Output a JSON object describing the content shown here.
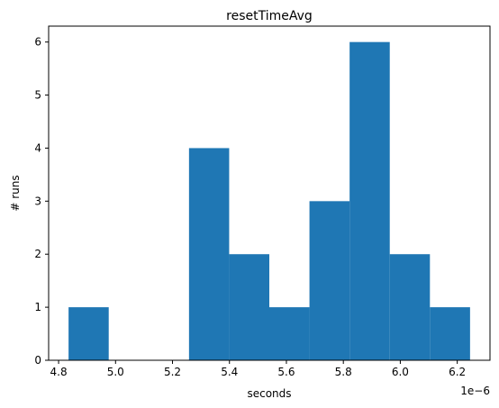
{
  "chart_data": {
    "type": "bar",
    "title": "resetTimeAvg",
    "xlabel": "seconds",
    "ylabel": "# runs",
    "x_offset_label": "1e−6",
    "bins": [
      {
        "start": 4.835,
        "end": 4.976,
        "count": 1
      },
      {
        "start": 4.976,
        "end": 5.117,
        "count": 0
      },
      {
        "start": 5.117,
        "end": 5.258,
        "count": 0
      },
      {
        "start": 5.258,
        "end": 5.399,
        "count": 4
      },
      {
        "start": 5.399,
        "end": 5.54,
        "count": 2
      },
      {
        "start": 5.54,
        "end": 5.681,
        "count": 1
      },
      {
        "start": 5.681,
        "end": 5.822,
        "count": 3
      },
      {
        "start": 5.822,
        "end": 5.963,
        "count": 6
      },
      {
        "start": 5.963,
        "end": 6.104,
        "count": 2
      },
      {
        "start": 6.104,
        "end": 6.245,
        "count": 1
      }
    ],
    "xlim": [
      4.765,
      6.315
    ],
    "ylim": [
      0,
      6.3
    ],
    "xticks": [
      "4.8",
      "5.0",
      "5.2",
      "5.4",
      "5.6",
      "5.8",
      "6.0",
      "6.2"
    ],
    "yticks": [
      "0",
      "1",
      "2",
      "3",
      "4",
      "5",
      "6"
    ],
    "grid": false,
    "bar_color": "#1f77b4"
  }
}
